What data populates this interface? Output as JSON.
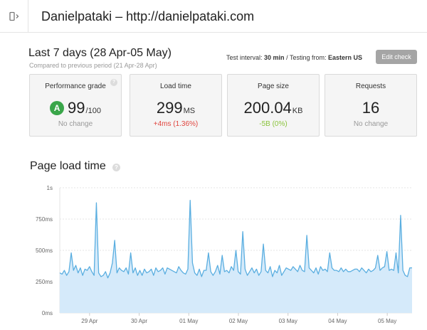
{
  "header": {
    "site_title": "Danielpataki – http://danielpataki.com"
  },
  "period": {
    "title": "Last 7 days (28 Apr-05 May)",
    "comparison": "Compared to previous period (21 Apr-28 Apr)"
  },
  "test_info": {
    "interval_label": "Test interval:",
    "interval_value": "30 min",
    "separator": "/",
    "location_label": "Testing from:",
    "location_value": "Eastern US"
  },
  "edit_check_label": "Edit check",
  "cards": {
    "grade": {
      "label": "Performance grade",
      "letter": "A",
      "value": "99",
      "unit": "/100",
      "change": "No change",
      "help": "?"
    },
    "load_time": {
      "label": "Load time",
      "value": "299",
      "unit": "MS",
      "change": "+4ms (1.36%)"
    },
    "page_size": {
      "label": "Page size",
      "value": "200.04",
      "unit": "KB",
      "change": "-5B (0%)"
    },
    "requests": {
      "label": "Requests",
      "value": "16",
      "change": "No change"
    }
  },
  "section": {
    "title": "Page load time",
    "help": "?"
  },
  "colors": {
    "accent_line": "#5aaee0",
    "area_fill": "#d5eafa",
    "grade_green": "#3aa64a",
    "negative": "#e0443e",
    "positive": "#8ac33b"
  },
  "chart_data": {
    "type": "area",
    "title": "Page load time",
    "xlabel": "",
    "ylabel": "",
    "ylim": [
      0,
      1
    ],
    "y_ticks": [
      0,
      0.25,
      0.5,
      0.75,
      1
    ],
    "y_tick_labels": [
      "0ms",
      "250ms",
      "500ms",
      "750ms",
      "1s"
    ],
    "x_ticks": [
      "29 Apr",
      "30 Apr",
      "01 May",
      "02 May",
      "03 May",
      "04 May",
      "05 May"
    ],
    "grid": true,
    "series": [
      {
        "values": [
          0.32,
          0.31,
          0.34,
          0.3,
          0.33,
          0.48,
          0.34,
          0.38,
          0.32,
          0.36,
          0.3,
          0.35,
          0.34,
          0.37,
          0.33,
          0.3,
          0.88,
          0.32,
          0.29,
          0.3,
          0.33,
          0.28,
          0.32,
          0.4,
          0.58,
          0.32,
          0.36,
          0.34,
          0.33,
          0.36,
          0.31,
          0.48,
          0.32,
          0.36,
          0.3,
          0.34,
          0.3,
          0.35,
          0.32,
          0.33,
          0.35,
          0.3,
          0.36,
          0.33,
          0.34,
          0.36,
          0.31,
          0.36,
          0.35,
          0.34,
          0.33,
          0.32,
          0.37,
          0.34,
          0.32,
          0.31,
          0.35,
          0.9,
          0.4,
          0.32,
          0.3,
          0.35,
          0.29,
          0.34,
          0.34,
          0.48,
          0.33,
          0.3,
          0.33,
          0.38,
          0.31,
          0.46,
          0.33,
          0.34,
          0.32,
          0.37,
          0.34,
          0.5,
          0.33,
          0.31,
          0.65,
          0.35,
          0.3,
          0.33,
          0.36,
          0.32,
          0.35,
          0.3,
          0.33,
          0.55,
          0.34,
          0.32,
          0.37,
          0.29,
          0.34,
          0.32,
          0.38,
          0.3,
          0.33,
          0.36,
          0.35,
          0.34,
          0.37,
          0.35,
          0.33,
          0.38,
          0.34,
          0.33,
          0.62,
          0.36,
          0.34,
          0.32,
          0.36,
          0.31,
          0.37,
          0.34,
          0.35,
          0.33,
          0.48,
          0.36,
          0.34,
          0.34,
          0.33,
          0.36,
          0.33,
          0.35,
          0.33,
          0.33,
          0.34,
          0.35,
          0.35,
          0.33,
          0.36,
          0.34,
          0.32,
          0.35,
          0.33,
          0.34,
          0.36,
          0.46,
          0.34,
          0.36,
          0.37,
          0.49,
          0.34,
          0.35,
          0.34,
          0.48,
          0.32,
          0.78,
          0.34,
          0.3,
          0.29,
          0.36,
          0.36
        ]
      }
    ]
  }
}
